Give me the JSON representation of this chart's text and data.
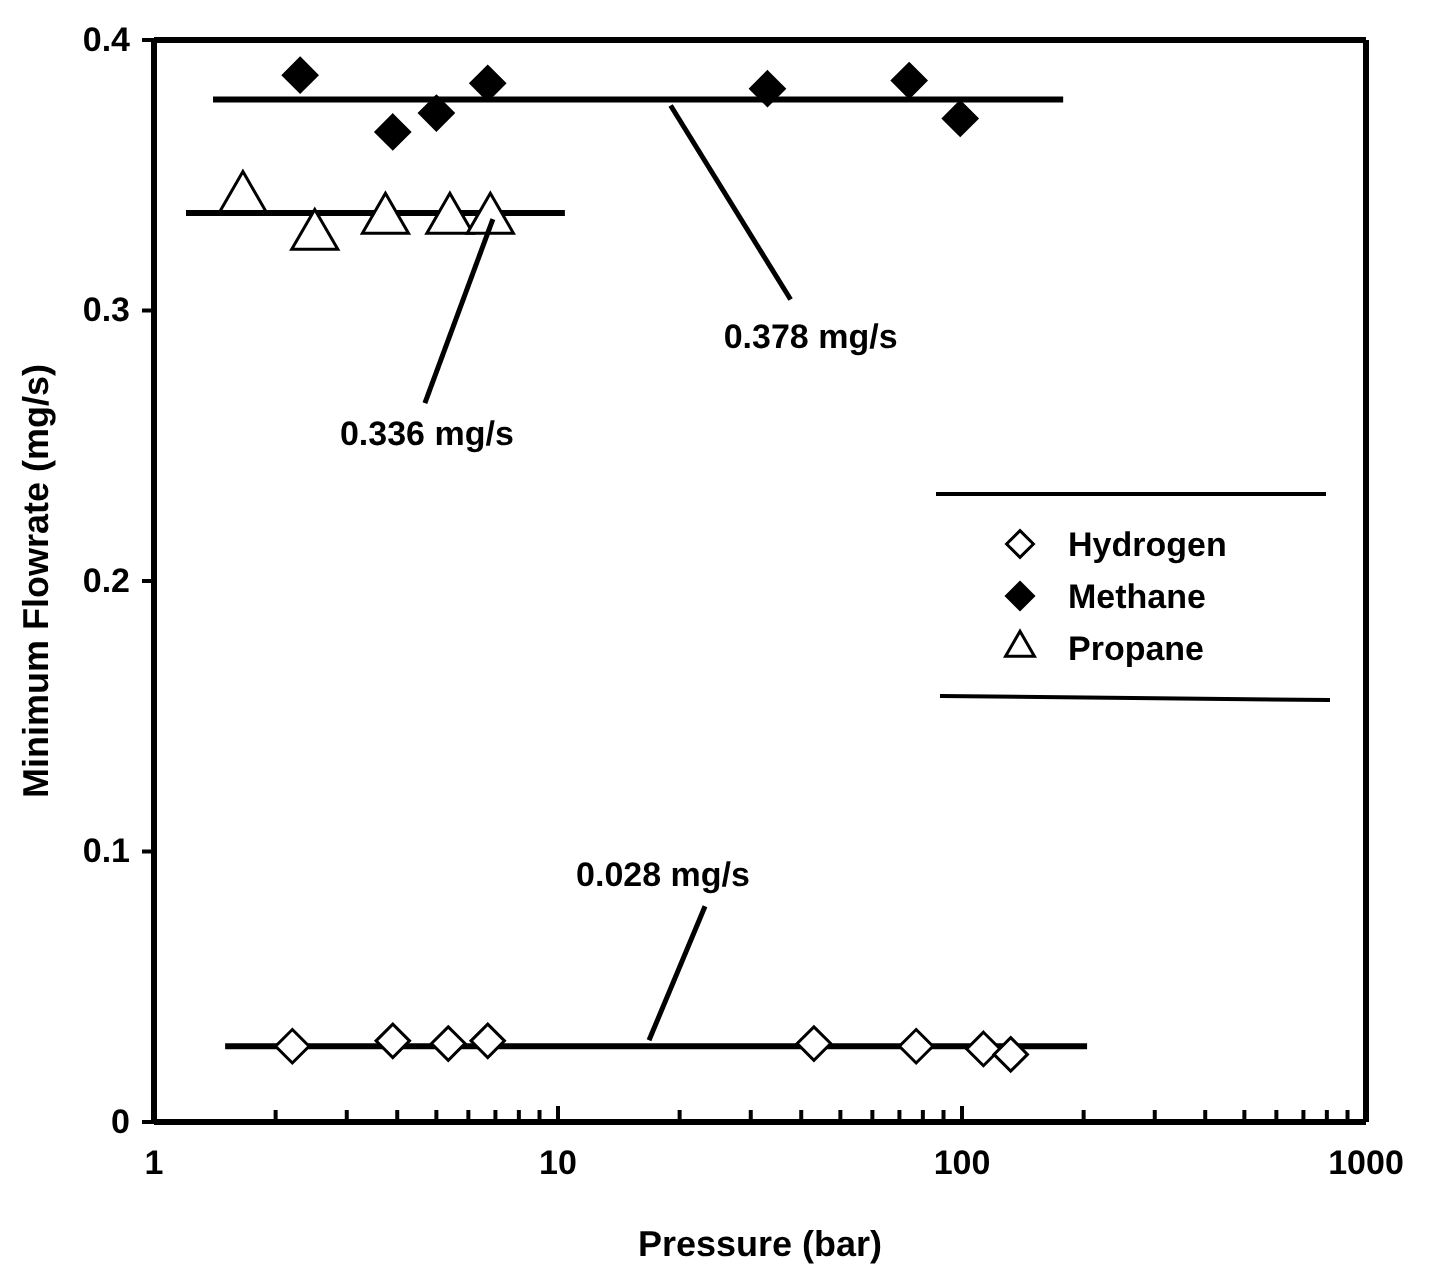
{
  "chart_data": {
    "type": "scatter",
    "xlabel": "Pressure (bar)",
    "ylabel": "Minimum Flowrate (mg/s)",
    "log": "x",
    "xlim": [
      1,
      1000
    ],
    "ylim": [
      0,
      0.4
    ],
    "xticks": [
      1,
      {
        "value": 2,
        "label": null
      },
      {
        "value": 3,
        "label": null
      },
      {
        "value": 4,
        "label": null
      },
      {
        "value": 5,
        "label": null
      },
      {
        "value": 6,
        "label": null
      },
      {
        "value": 7,
        "label": null
      },
      {
        "value": 8,
        "label": null
      },
      {
        "value": 9,
        "label": null
      },
      10,
      {
        "value": 20,
        "label": null
      },
      {
        "value": 30,
        "label": null
      },
      {
        "value": 40,
        "label": null
      },
      {
        "value": 50,
        "label": null
      },
      {
        "value": 60,
        "label": null
      },
      {
        "value": 70,
        "label": null
      },
      {
        "value": 80,
        "label": null
      },
      {
        "value": 90,
        "label": null
      },
      100,
      {
        "value": 200,
        "label": null
      },
      {
        "value": 300,
        "label": null
      },
      {
        "value": 400,
        "label": null
      },
      {
        "value": 500,
        "label": null
      },
      {
        "value": 600,
        "label": null
      },
      {
        "value": 700,
        "label": null
      },
      {
        "value": 800,
        "label": null
      },
      {
        "value": 900,
        "label": null
      },
      1000
    ],
    "yticks": [
      0,
      0.1,
      0.2,
      0.3,
      0.4
    ],
    "grid": false,
    "legend": "right",
    "series": [
      {
        "name": "Hydrogen",
        "color": "#000000",
        "marker": "diamond-open",
        "x": [
          2.2,
          3.9,
          5.35,
          6.7,
          43,
          77,
          113,
          132
        ],
        "values": [
          0.028,
          0.03,
          0.029,
          0.03,
          0.029,
          0.028,
          0.027,
          0.025
        ]
      },
      {
        "name": "Methane",
        "color": "#000000",
        "marker": "diamond",
        "x": [
          2.3,
          3.9,
          5.0,
          6.7,
          33,
          74,
          99
        ],
        "values": [
          0.387,
          0.366,
          0.373,
          0.384,
          0.382,
          0.385,
          0.371
        ]
      },
      {
        "name": "Propane",
        "color": "#000000",
        "marker": "triangle-open",
        "x": [
          1.66,
          2.5,
          3.74,
          5.4,
          6.8
        ],
        "values": [
          0.343,
          0.329,
          0.335,
          0.335,
          0.335
        ]
      },
      {
        "type": "line",
        "color": "#000000",
        "marker": "none",
        "x": [
          1.4,
          178
        ],
        "values": [
          0.378,
          0.378
        ]
      },
      {
        "type": "line",
        "color": "#000000",
        "marker": "none",
        "x": [
          1.2,
          10.4
        ],
        "values": [
          0.336,
          0.336
        ]
      },
      {
        "type": "line",
        "color": "#000000",
        "marker": "none",
        "x": [
          1.5,
          204
        ],
        "values": [
          0.028,
          0.028
        ]
      }
    ],
    "annotations": [
      {
        "text": "0.378 mg/s",
        "x": 19,
        "y": 0.378
      },
      {
        "text": "0.336 mg/s",
        "x": 6.9,
        "y": 0.336
      },
      {
        "text": "0.028 mg/s",
        "x": 16.8,
        "y": 0.028
      }
    ]
  }
}
